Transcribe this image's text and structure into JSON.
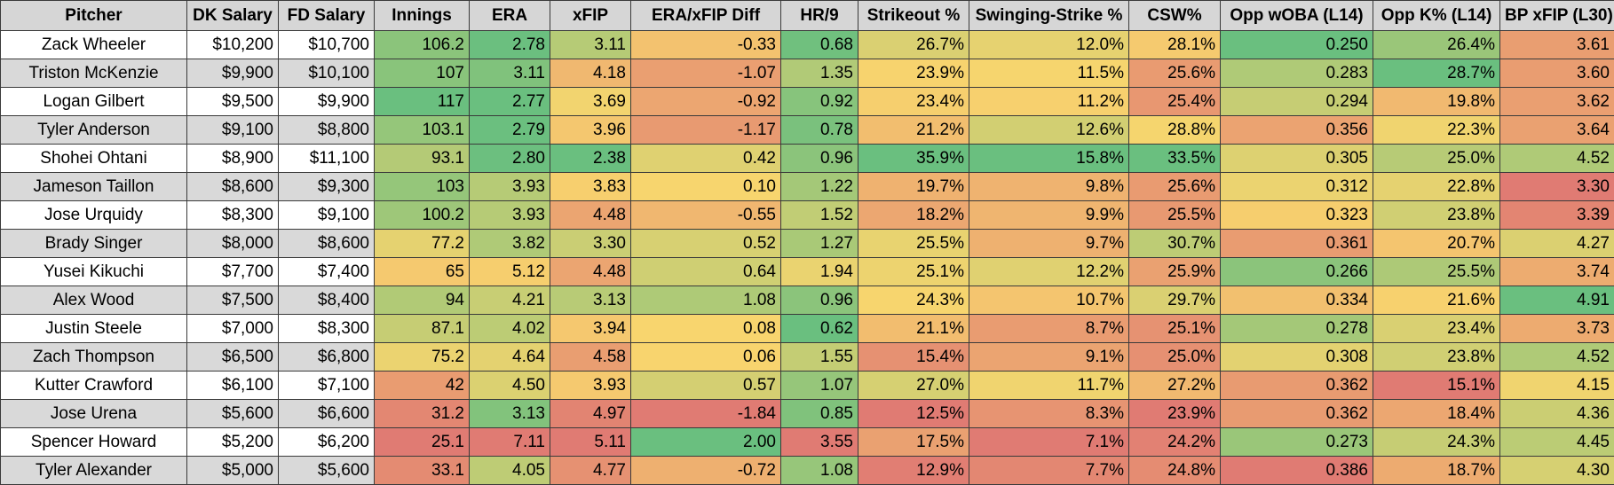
{
  "columns": [
    "Pitcher",
    "DK Salary",
    "FD Salary",
    "Innings",
    "ERA",
    "xFIP",
    "ERA/xFIP Diff",
    "HR/9",
    "Strikeout %",
    "Swinging-Strike %",
    "CSW%",
    "Opp wOBA (L14)",
    "Opp K% (L14)",
    "BP xFIP (L30)"
  ],
  "colors": {
    "green": "#6abf7f",
    "yellow": "#f8d56e",
    "red": "#e07b73"
  },
  "rows": [
    {
      "pitcher": "Zack Wheeler",
      "dk": "$10,200",
      "fd": "$10,700",
      "innings": "106.2",
      "era": "2.78",
      "xfip": "3.11",
      "diff": "-0.33",
      "hr9": "0.68",
      "k": "26.7%",
      "swstr": "12.0%",
      "csw": "28.1%",
      "woba": "0.250",
      "oppk": "26.4%",
      "bp": "3.61"
    },
    {
      "pitcher": "Triston McKenzie",
      "dk": "$9,900",
      "fd": "$10,100",
      "innings": "107",
      "era": "3.11",
      "xfip": "4.18",
      "diff": "-1.07",
      "hr9": "1.35",
      "k": "23.9%",
      "swstr": "11.5%",
      "csw": "25.6%",
      "woba": "0.283",
      "oppk": "28.7%",
      "bp": "3.60"
    },
    {
      "pitcher": "Logan Gilbert",
      "dk": "$9,500",
      "fd": "$9,900",
      "innings": "117",
      "era": "2.77",
      "xfip": "3.69",
      "diff": "-0.92",
      "hr9": "0.92",
      "k": "23.4%",
      "swstr": "11.2%",
      "csw": "25.4%",
      "woba": "0.294",
      "oppk": "19.8%",
      "bp": "3.62"
    },
    {
      "pitcher": "Tyler Anderson",
      "dk": "$9,100",
      "fd": "$8,800",
      "innings": "103.1",
      "era": "2.79",
      "xfip": "3.96",
      "diff": "-1.17",
      "hr9": "0.78",
      "k": "21.2%",
      "swstr": "12.6%",
      "csw": "28.8%",
      "woba": "0.356",
      "oppk": "22.3%",
      "bp": "3.64"
    },
    {
      "pitcher": "Shohei Ohtani",
      "dk": "$8,900",
      "fd": "$11,100",
      "innings": "93.1",
      "era": "2.80",
      "xfip": "2.38",
      "diff": "0.42",
      "hr9": "0.96",
      "k": "35.9%",
      "swstr": "15.8%",
      "csw": "33.5%",
      "woba": "0.305",
      "oppk": "25.0%",
      "bp": "4.52"
    },
    {
      "pitcher": "Jameson Taillon",
      "dk": "$8,600",
      "fd": "$9,300",
      "innings": "103",
      "era": "3.93",
      "xfip": "3.83",
      "diff": "0.10",
      "hr9": "1.22",
      "k": "19.7%",
      "swstr": "9.8%",
      "csw": "25.6%",
      "woba": "0.312",
      "oppk": "22.8%",
      "bp": "3.30"
    },
    {
      "pitcher": "Jose Urquidy",
      "dk": "$8,300",
      "fd": "$9,100",
      "innings": "100.2",
      "era": "3.93",
      "xfip": "4.48",
      "diff": "-0.55",
      "hr9": "1.52",
      "k": "18.2%",
      "swstr": "9.9%",
      "csw": "25.5%",
      "woba": "0.323",
      "oppk": "23.8%",
      "bp": "3.39"
    },
    {
      "pitcher": "Brady Singer",
      "dk": "$8,000",
      "fd": "$8,600",
      "innings": "77.2",
      "era": "3.82",
      "xfip": "3.30",
      "diff": "0.52",
      "hr9": "1.27",
      "k": "25.5%",
      "swstr": "9.7%",
      "csw": "30.7%",
      "woba": "0.361",
      "oppk": "20.7%",
      "bp": "4.27"
    },
    {
      "pitcher": "Yusei Kikuchi",
      "dk": "$7,700",
      "fd": "$7,400",
      "innings": "65",
      "era": "5.12",
      "xfip": "4.48",
      "diff": "0.64",
      "hr9": "1.94",
      "k": "25.1%",
      "swstr": "12.2%",
      "csw": "25.9%",
      "woba": "0.266",
      "oppk": "25.5%",
      "bp": "3.74"
    },
    {
      "pitcher": "Alex Wood",
      "dk": "$7,500",
      "fd": "$8,400",
      "innings": "94",
      "era": "4.21",
      "xfip": "3.13",
      "diff": "1.08",
      "hr9": "0.96",
      "k": "24.3%",
      "swstr": "10.7%",
      "csw": "29.7%",
      "woba": "0.334",
      "oppk": "21.6%",
      "bp": "4.91"
    },
    {
      "pitcher": "Justin Steele",
      "dk": "$7,000",
      "fd": "$8,300",
      "innings": "87.1",
      "era": "4.02",
      "xfip": "3.94",
      "diff": "0.08",
      "hr9": "0.62",
      "k": "21.1%",
      "swstr": "8.7%",
      "csw": "25.1%",
      "woba": "0.278",
      "oppk": "23.4%",
      "bp": "3.73"
    },
    {
      "pitcher": "Zach Thompson",
      "dk": "$6,500",
      "fd": "$6,800",
      "innings": "75.2",
      "era": "4.64",
      "xfip": "4.58",
      "diff": "0.06",
      "hr9": "1.55",
      "k": "15.4%",
      "swstr": "9.1%",
      "csw": "25.0%",
      "woba": "0.308",
      "oppk": "23.8%",
      "bp": "4.52"
    },
    {
      "pitcher": "Kutter Crawford",
      "dk": "$6,100",
      "fd": "$7,100",
      "innings": "42",
      "era": "4.50",
      "xfip": "3.93",
      "diff": "0.57",
      "hr9": "1.07",
      "k": "27.0%",
      "swstr": "11.7%",
      "csw": "27.2%",
      "woba": "0.362",
      "oppk": "15.1%",
      "bp": "4.15"
    },
    {
      "pitcher": "Jose Urena",
      "dk": "$5,600",
      "fd": "$6,600",
      "innings": "31.2",
      "era": "3.13",
      "xfip": "4.97",
      "diff": "-1.84",
      "hr9": "0.85",
      "k": "12.5%",
      "swstr": "8.3%",
      "csw": "23.9%",
      "woba": "0.362",
      "oppk": "18.4%",
      "bp": "4.36"
    },
    {
      "pitcher": "Spencer Howard",
      "dk": "$5,200",
      "fd": "$6,200",
      "innings": "25.1",
      "era": "7.11",
      "xfip": "5.11",
      "diff": "2.00",
      "hr9": "3.55",
      "k": "17.5%",
      "swstr": "7.1%",
      "csw": "24.2%",
      "woba": "0.273",
      "oppk": "24.3%",
      "bp": "4.45"
    },
    {
      "pitcher": "Tyler Alexander",
      "dk": "$5,000",
      "fd": "$5,600",
      "innings": "33.1",
      "era": "4.05",
      "xfip": "4.77",
      "diff": "-0.72",
      "hr9": "1.08",
      "k": "12.9%",
      "swstr": "7.7%",
      "csw": "24.8%",
      "woba": "0.386",
      "oppk": "18.7%",
      "bp": "4.30"
    }
  ]
}
